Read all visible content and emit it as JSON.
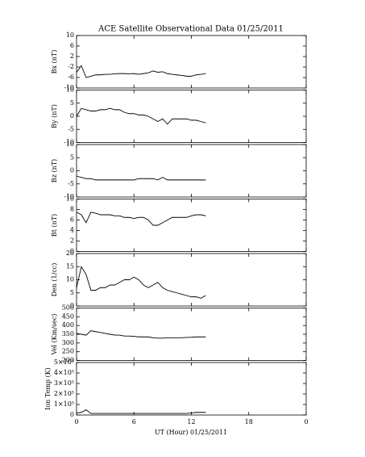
{
  "title": "ACE Satellite Observational Data   01/25/2011",
  "xlabel": "UT (Hour)  01/25/2011",
  "xlim": [
    0,
    24
  ],
  "xticks": [
    0,
    6,
    12,
    18,
    {
      "value": 24,
      "label": "0"
    }
  ],
  "chart_data": [
    {
      "type": "line",
      "ylabel": "Bx (nT)",
      "ylim": [
        -10,
        10
      ],
      "yticks": [
        -10,
        -6,
        -2,
        2,
        6,
        10
      ],
      "color": "#000000",
      "x": [
        0,
        0.5,
        1,
        1.5,
        2,
        2.5,
        3,
        3.5,
        4,
        4.5,
        5,
        5.5,
        6,
        6.5,
        7,
        7.5,
        8,
        8.5,
        9,
        9.5,
        10,
        10.5,
        11,
        11.5,
        12,
        12.5,
        13,
        13.5
      ],
      "values": [
        -4,
        -1.5,
        -6,
        -5.5,
        -5,
        -5,
        -4.8,
        -4.8,
        -4.6,
        -4.5,
        -4.5,
        -4.6,
        -4.5,
        -4.8,
        -4.5,
        -4.2,
        -3.5,
        -4,
        -3.8,
        -4.5,
        -4.8,
        -5,
        -5.2,
        -5.5,
        -5.5,
        -5,
        -4.8,
        -4.5
      ]
    },
    {
      "type": "line",
      "ylabel": "By (nT)",
      "ylim": [
        -10,
        10
      ],
      "yticks": [
        -10,
        -5,
        0,
        5,
        10
      ],
      "color": "#000000",
      "x": [
        0,
        0.5,
        1,
        1.5,
        2,
        2.5,
        3,
        3.5,
        4,
        4.5,
        5,
        5.5,
        6,
        6.5,
        7,
        7.5,
        8,
        8.5,
        9,
        9.5,
        10,
        10.5,
        11,
        11.5,
        12,
        12.5,
        13,
        13.5
      ],
      "values": [
        0,
        3,
        2.5,
        2,
        2,
        2.5,
        2.5,
        3,
        2.5,
        2.5,
        1.5,
        1,
        1,
        0.5,
        0.5,
        0,
        -1,
        -2,
        -1,
        -3,
        -1,
        -1,
        -1,
        -1,
        -1.5,
        -1.5,
        -2,
        -2.5
      ]
    },
    {
      "type": "line",
      "ylabel": "Bz (nT)",
      "ylim": [
        -10,
        10
      ],
      "yticks": [
        -10,
        -5,
        0,
        5,
        10
      ],
      "color": "#000000",
      "x": [
        0,
        0.5,
        1,
        1.5,
        2,
        2.5,
        3,
        3.5,
        4,
        4.5,
        5,
        5.5,
        6,
        6.5,
        7,
        7.5,
        8,
        8.5,
        9,
        9.5,
        10,
        10.5,
        11,
        11.5,
        12,
        12.5,
        13,
        13.5
      ],
      "values": [
        -2,
        -2.5,
        -3,
        -3,
        -3.5,
        -3.5,
        -3.5,
        -3.5,
        -3.5,
        -3.5,
        -3.5,
        -3.5,
        -3.5,
        -3,
        -3,
        -3,
        -3,
        -3.5,
        -2.5,
        -3.5,
        -3.5,
        -3.5,
        -3.5,
        -3.5,
        -3.5,
        -3.5,
        -3.5,
        -3.5
      ]
    },
    {
      "type": "line",
      "ylabel": "Bt (nT)",
      "ylim": [
        0,
        10
      ],
      "yticks": [
        0,
        2,
        4,
        6,
        8,
        10
      ],
      "color": "#000000",
      "x": [
        0,
        0.5,
        1,
        1.5,
        2,
        2.5,
        3,
        3.5,
        4,
        4.5,
        5,
        5.5,
        6,
        6.5,
        7,
        7.5,
        8,
        8.5,
        9,
        9.5,
        10,
        10.5,
        11,
        11.5,
        12,
        12.5,
        13,
        13.5
      ],
      "values": [
        7.5,
        7,
        5.5,
        7.5,
        7.3,
        7,
        7,
        7,
        6.8,
        6.8,
        6.5,
        6.5,
        6.3,
        6.5,
        6.5,
        6,
        5,
        5,
        5.5,
        6,
        6.5,
        6.5,
        6.5,
        6.5,
        6.8,
        7,
        7,
        6.8
      ]
    },
    {
      "type": "line",
      "ylabel": "Den (1/cc)",
      "ylim": [
        0,
        20
      ],
      "yticks": [
        0,
        5,
        10,
        15,
        20
      ],
      "color": "#000000",
      "x": [
        0,
        0.5,
        1,
        1.5,
        2,
        2.5,
        3,
        3.5,
        4,
        4.5,
        5,
        5.5,
        6,
        6.5,
        7,
        7.5,
        8,
        8.5,
        9,
        9.5,
        10,
        10.5,
        11,
        11.5,
        12,
        12.5,
        13,
        13.5
      ],
      "values": [
        7,
        15,
        12,
        6,
        6,
        7,
        7,
        8,
        8,
        9,
        10,
        10,
        11,
        10,
        8,
        7,
        8,
        9,
        7,
        6,
        5.5,
        5,
        4.5,
        4,
        3.5,
        3.5,
        3,
        4
      ]
    },
    {
      "type": "line",
      "ylabel": "Vel (Km/sec)",
      "ylim": [
        200,
        500
      ],
      "yticks": [
        200,
        250,
        300,
        350,
        400,
        450,
        500
      ],
      "color": "#000000",
      "x": [
        0,
        0.5,
        1,
        1.5,
        2,
        2.5,
        3,
        3.5,
        4,
        4.5,
        5,
        5.5,
        6,
        6.5,
        7,
        7.5,
        8,
        8.5,
        9,
        9.5,
        10,
        10.5,
        11,
        11.5,
        12,
        12.5,
        13,
        13.5
      ],
      "values": [
        355,
        350,
        345,
        370,
        365,
        360,
        355,
        350,
        345,
        345,
        340,
        340,
        338,
        335,
        335,
        335,
        330,
        328,
        328,
        330,
        330,
        330,
        330,
        332,
        333,
        335,
        335,
        335
      ]
    },
    {
      "type": "line",
      "ylabel": "Ion Temp (K)",
      "ylim": [
        0,
        500000
      ],
      "yticks": [
        0,
        {
          "value": 100000,
          "label": "1×10⁵"
        },
        {
          "value": 200000,
          "label": "2×10⁵"
        },
        {
          "value": 300000,
          "label": "3×10⁵"
        },
        {
          "value": 400000,
          "label": "4×10⁵"
        },
        {
          "value": 500000,
          "label": "5×10⁵"
        }
      ],
      "color": "#000000",
      "x": [
        0,
        0.5,
        1,
        1.5,
        2,
        2.5,
        3,
        3.5,
        4,
        4.5,
        5,
        5.5,
        6,
        6.5,
        7,
        7.5,
        8,
        8.5,
        9,
        9.5,
        10,
        10.5,
        11,
        11.5,
        12,
        12.5,
        13,
        13.5
      ],
      "values": [
        20000,
        25000,
        50000,
        15000,
        15000,
        15000,
        15000,
        15000,
        15000,
        15000,
        15000,
        15000,
        15000,
        15000,
        15000,
        15000,
        15000,
        15000,
        15000,
        15000,
        15000,
        15000,
        15000,
        15000,
        20000,
        25000,
        25000,
        25000
      ]
    }
  ]
}
